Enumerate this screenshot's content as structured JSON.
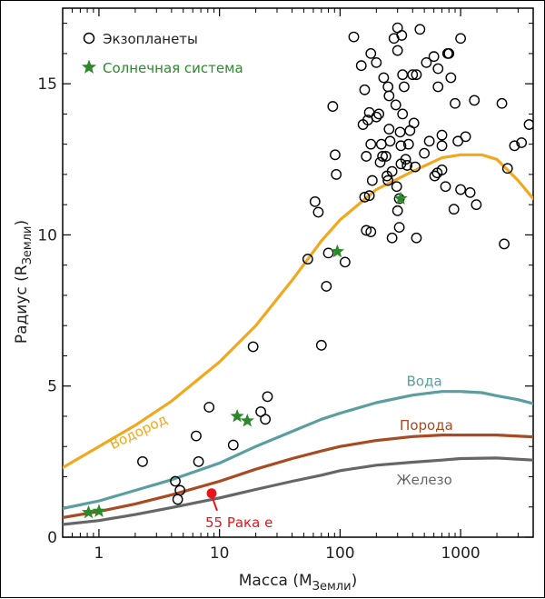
{
  "chart_data": {
    "type": "scatter",
    "xlabel": "Масса (M",
    "xlabel_sub": "Земли",
    "xlabel_end": ")",
    "ylabel": "Радиус (R",
    "ylabel_sub": "Земли",
    "ylabel_end": ")",
    "x_scale": "log",
    "xlim": [
      0.5,
      4000
    ],
    "ylim": [
      0,
      17.5
    ],
    "x_ticks": [
      1,
      10,
      100,
      1000
    ],
    "x_tick_labels": [
      "1",
      "10",
      "100",
      "1000"
    ],
    "y_ticks": [
      0,
      5,
      10,
      15
    ],
    "y_tick_labels": [
      "0",
      "5",
      "10",
      "15"
    ],
    "legend": {
      "placement": "top-left",
      "items": [
        {
          "label": "Экзопланеты",
          "marker": "open-circle",
          "color": "#000000"
        },
        {
          "label": "Солнечная система",
          "marker": "star",
          "color": "#2a8a2a"
        }
      ]
    },
    "curves": [
      {
        "name": "Водород",
        "color": "#f2a81d",
        "points": [
          [
            0.5,
            2.3
          ],
          [
            1,
            3.0
          ],
          [
            2,
            3.7
          ],
          [
            4,
            4.5
          ],
          [
            10,
            5.8
          ],
          [
            20,
            7.0
          ],
          [
            40,
            8.5
          ],
          [
            70,
            9.8
          ],
          [
            100,
            10.5
          ],
          [
            200,
            11.5
          ],
          [
            400,
            12.1
          ],
          [
            700,
            12.55
          ],
          [
            1000,
            12.65
          ],
          [
            1500,
            12.65
          ],
          [
            2000,
            12.5
          ],
          [
            3000,
            11.8
          ],
          [
            4000,
            11.2
          ]
        ]
      },
      {
        "name": "Вода",
        "color": "#5b9ea0",
        "points": [
          [
            0.5,
            0.95
          ],
          [
            1,
            1.2
          ],
          [
            2,
            1.55
          ],
          [
            4,
            1.9
          ],
          [
            10,
            2.45
          ],
          [
            20,
            3.0
          ],
          [
            40,
            3.5
          ],
          [
            70,
            3.9
          ],
          [
            100,
            4.1
          ],
          [
            200,
            4.45
          ],
          [
            400,
            4.7
          ],
          [
            700,
            4.82
          ],
          [
            1000,
            4.82
          ],
          [
            1500,
            4.78
          ],
          [
            2000,
            4.68
          ],
          [
            3000,
            4.55
          ],
          [
            4000,
            4.42
          ]
        ]
      },
      {
        "name": "Порода",
        "color": "#a84a22",
        "points": [
          [
            0.5,
            0.65
          ],
          [
            1,
            0.85
          ],
          [
            2,
            1.1
          ],
          [
            4,
            1.4
          ],
          [
            10,
            1.85
          ],
          [
            20,
            2.25
          ],
          [
            40,
            2.6
          ],
          [
            70,
            2.85
          ],
          [
            100,
            3.0
          ],
          [
            200,
            3.2
          ],
          [
            400,
            3.33
          ],
          [
            700,
            3.38
          ],
          [
            1000,
            3.38
          ],
          [
            2000,
            3.38
          ],
          [
            4000,
            3.32
          ]
        ]
      },
      {
        "name": "Железо",
        "color": "#666666",
        "points": [
          [
            0.5,
            0.42
          ],
          [
            1,
            0.55
          ],
          [
            2,
            0.75
          ],
          [
            4,
            0.98
          ],
          [
            10,
            1.3
          ],
          [
            20,
            1.58
          ],
          [
            40,
            1.85
          ],
          [
            70,
            2.05
          ],
          [
            100,
            2.2
          ],
          [
            200,
            2.38
          ],
          [
            400,
            2.48
          ],
          [
            700,
            2.55
          ],
          [
            1000,
            2.6
          ],
          [
            2000,
            2.62
          ],
          [
            4000,
            2.55
          ]
        ]
      }
    ],
    "solar_system": [
      [
        0.82,
        0.82
      ],
      [
        1.0,
        0.86
      ],
      [
        14,
        4.0
      ],
      [
        17,
        3.85
      ],
      [
        95,
        9.45
      ],
      [
        318,
        11.2
      ]
    ],
    "highlight": {
      "label": "55 Рака е",
      "x": 8.6,
      "y": 1.45,
      "color": "#e8151b"
    },
    "exoplanets": [
      [
        2.3,
        2.5
      ],
      [
        4.3,
        1.85
      ],
      [
        4.5,
        1.25
      ],
      [
        4.7,
        1.55
      ],
      [
        6.4,
        3.35
      ],
      [
        6.7,
        2.5
      ],
      [
        8.2,
        4.3
      ],
      [
        13,
        3.05
      ],
      [
        19,
        6.3
      ],
      [
        22,
        4.15
      ],
      [
        24,
        3.9
      ],
      [
        25,
        4.65
      ],
      [
        54,
        9.2
      ],
      [
        62,
        11.1
      ],
      [
        66,
        10.75
      ],
      [
        70,
        6.35
      ],
      [
        77,
        8.3
      ],
      [
        80,
        9.4
      ],
      [
        87,
        14.25
      ],
      [
        93,
        12.0
      ],
      [
        91,
        12.65
      ],
      [
        110,
        9.1
      ],
      [
        130,
        16.55
      ],
      [
        150,
        15.6
      ],
      [
        155,
        13.65
      ],
      [
        160,
        11.25
      ],
      [
        165,
        12.6
      ],
      [
        170,
        13.8
      ],
      [
        175,
        14.05
      ],
      [
        160,
        14.8
      ],
      [
        175,
        11.3
      ],
      [
        165,
        10.15
      ],
      [
        180,
        16.0
      ],
      [
        185,
        11.8
      ],
      [
        180,
        10.1
      ],
      [
        180,
        13.0
      ],
      [
        200,
        15.7
      ],
      [
        200,
        13.9
      ],
      [
        210,
        14.0
      ],
      [
        215,
        12.4
      ],
      [
        220,
        13.0
      ],
      [
        225,
        12.6
      ],
      [
        230,
        15.2
      ],
      [
        240,
        12.6
      ],
      [
        245,
        11.95
      ],
      [
        250,
        11.8
      ],
      [
        250,
        14.9
      ],
      [
        255,
        13.5
      ],
      [
        255,
        14.6
      ],
      [
        260,
        13.1
      ],
      [
        270,
        9.9
      ],
      [
        270,
        12.1
      ],
      [
        280,
        16.5
      ],
      [
        290,
        14.3
      ],
      [
        295,
        11.6
      ],
      [
        310,
        11.2
      ],
      [
        300,
        16.1
      ],
      [
        300,
        16.85
      ],
      [
        300,
        10.8
      ],
      [
        310,
        10.25
      ],
      [
        315,
        13.4
      ],
      [
        320,
        12.35
      ],
      [
        320,
        12.95
      ],
      [
        325,
        16.6
      ],
      [
        330,
        14.0
      ],
      [
        330,
        15.3
      ],
      [
        340,
        14.9
      ],
      [
        350,
        12.5
      ],
      [
        360,
        12.3
      ],
      [
        370,
        13.0
      ],
      [
        380,
        13.45
      ],
      [
        400,
        15.3
      ],
      [
        410,
        13.7
      ],
      [
        420,
        12.25
      ],
      [
        430,
        9.9
      ],
      [
        430,
        15.3
      ],
      [
        460,
        16.8
      ],
      [
        500,
        12.7
      ],
      [
        520,
        15.7
      ],
      [
        550,
        13.1
      ],
      [
        600,
        15.9
      ],
      [
        610,
        11.95
      ],
      [
        640,
        12.05
      ],
      [
        650,
        14.9
      ],
      [
        650,
        15.5
      ],
      [
        700,
        12.95
      ],
      [
        700,
        13.3
      ],
      [
        700,
        12.15
      ],
      [
        750,
        11.6
      ],
      [
        780,
        16.0
      ],
      [
        800,
        16.0
      ],
      [
        830,
        15.2
      ],
      [
        880,
        10.85
      ],
      [
        900,
        14.35
      ],
      [
        950,
        13.1
      ],
      [
        1000,
        16.5
      ],
      [
        1000,
        11.5
      ],
      [
        1100,
        13.25
      ],
      [
        1200,
        11.4
      ],
      [
        1350,
        11.0
      ],
      [
        1300,
        14.45
      ],
      [
        2200,
        14.35
      ],
      [
        2300,
        9.7
      ],
      [
        2450,
        12.2
      ],
      [
        2800,
        12.95
      ],
      [
        3200,
        13.05
      ],
      [
        3700,
        13.65
      ]
    ]
  }
}
